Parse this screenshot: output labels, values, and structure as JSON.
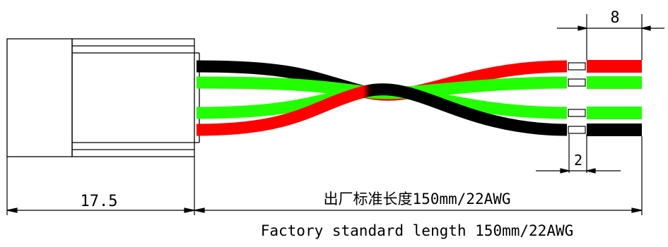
{
  "diagram": {
    "dimensions": {
      "connector_length": "17.5",
      "strip_length": "8",
      "tin_length": "2"
    },
    "label_cn": "出厂标准长度150mm/22AWG",
    "label_en": "Factory standard length 150mm/22AWG",
    "wire_colors": {
      "black": "#000000",
      "green": "#22ff00",
      "red": "#ff0000"
    },
    "wires": [
      {
        "start_color": "black",
        "end_color": "red"
      },
      {
        "start_color": "green",
        "end_color": "green"
      },
      {
        "start_color": "green",
        "end_color": "green"
      },
      {
        "start_color": "red",
        "end_color": "black"
      }
    ]
  }
}
